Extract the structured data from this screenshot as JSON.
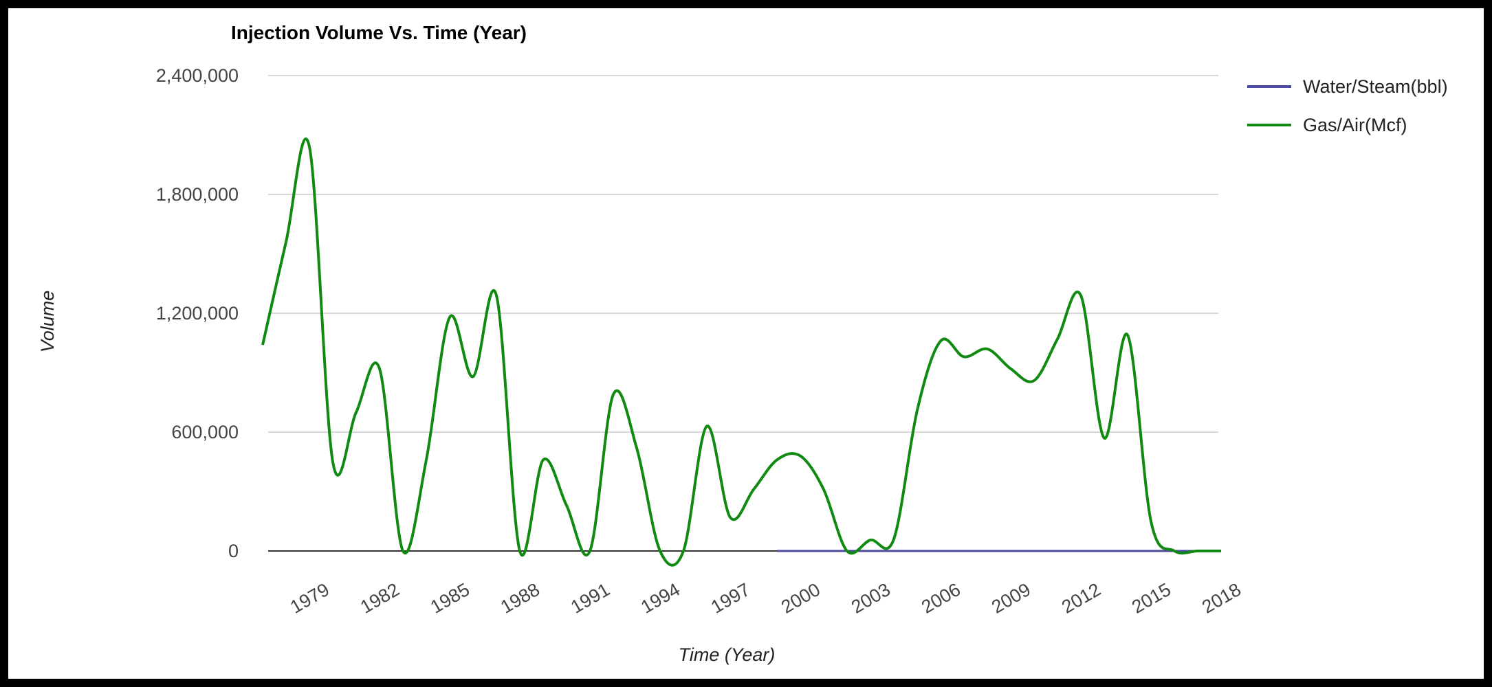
{
  "chart_data": {
    "type": "line",
    "title": "Injection Volume Vs. Time (Year)",
    "xlabel": "Time (Year)",
    "ylabel": "Volume",
    "x_tick_labels": [
      "1979",
      "1982",
      "1985",
      "1988",
      "1991",
      "1994",
      "1997",
      "2000",
      "2003",
      "2006",
      "2009",
      "2012",
      "2015",
      "2018"
    ],
    "y_tick_labels": [
      "2,400,000",
      "1,800,000",
      "1,200,000",
      "600,000",
      "0"
    ],
    "y_ticks": [
      2400000,
      1800000,
      1200000,
      600000,
      0
    ],
    "ylim": [
      0,
      2400000
    ],
    "xlim": [
      1977,
      2018
    ],
    "grid": true,
    "legend_position": "right",
    "series": [
      {
        "name": "Water/Steam(bbl)",
        "color": "#4b4ba0",
        "points": [
          [
            1999,
            0
          ],
          [
            2000,
            0
          ],
          [
            2002,
            0
          ],
          [
            2005,
            0
          ],
          [
            2008,
            0
          ],
          [
            2011,
            0
          ],
          [
            2014,
            0
          ],
          [
            2016,
            0
          ],
          [
            2017,
            0
          ]
        ]
      },
      {
        "name": "Gas/Air(Mcf)",
        "color": "#108a10",
        "points": [
          [
            1977,
            1040000
          ],
          [
            1978,
            1560000
          ],
          [
            1979,
            2040000
          ],
          [
            1980,
            450000
          ],
          [
            1981,
            700000
          ],
          [
            1982,
            920000
          ],
          [
            1983,
            0
          ],
          [
            1984,
            460000
          ],
          [
            1985,
            1180000
          ],
          [
            1986,
            880000
          ],
          [
            1987,
            1290000
          ],
          [
            1988,
            0
          ],
          [
            1989,
            460000
          ],
          [
            1990,
            230000
          ],
          [
            1991,
            0
          ],
          [
            1992,
            790000
          ],
          [
            1993,
            520000
          ],
          [
            1994,
            0
          ],
          [
            1995,
            0
          ],
          [
            1996,
            630000
          ],
          [
            1997,
            170000
          ],
          [
            1998,
            310000
          ],
          [
            1999,
            460000
          ],
          [
            2000,
            480000
          ],
          [
            2001,
            310000
          ],
          [
            2002,
            0
          ],
          [
            2003,
            55000
          ],
          [
            2004,
            60000
          ],
          [
            2005,
            710000
          ],
          [
            2006,
            1060000
          ],
          [
            2007,
            980000
          ],
          [
            2008,
            1020000
          ],
          [
            2009,
            920000
          ],
          [
            2010,
            860000
          ],
          [
            2011,
            1070000
          ],
          [
            2012,
            1290000
          ],
          [
            2013,
            570000
          ],
          [
            2014,
            1090000
          ],
          [
            2015,
            150000
          ],
          [
            2016,
            0
          ],
          [
            2017,
            0
          ],
          [
            2018,
            0
          ]
        ]
      }
    ]
  }
}
